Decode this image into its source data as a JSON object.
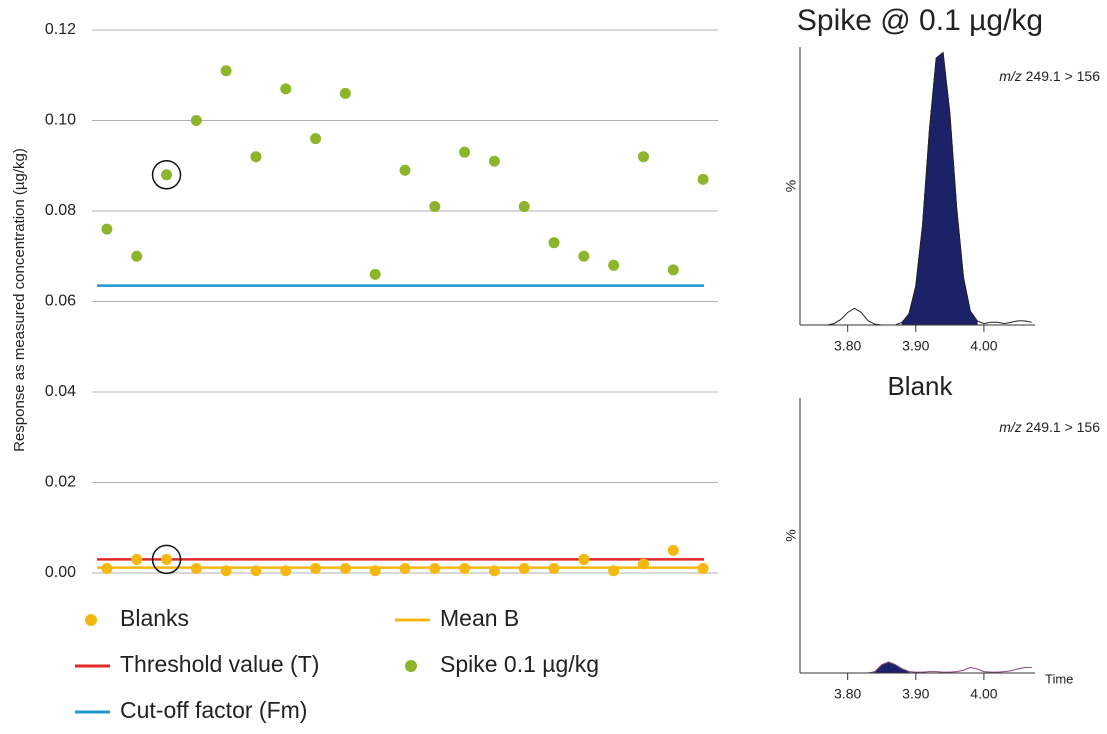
{
  "chart_data": [
    {
      "type": "scatter",
      "y_label": "Response as measured concentration (µg/kg)",
      "categories": [
        null,
        null,
        null,
        null,
        null,
        null,
        null,
        null,
        null,
        null,
        null,
        null,
        null,
        null,
        null,
        null,
        null,
        null,
        null,
        null,
        null
      ],
      "ylim": [
        0,
        0.12
      ],
      "yticks": [
        {
          "value": 0,
          "label": "0.00"
        },
        0.02,
        0.04,
        0.06,
        0.08,
        {
          "value": 0.1,
          "label": "0.10"
        },
        0.12
      ],
      "grid": true,
      "series": [
        {
          "name": "Blanks",
          "color": "#f5b810",
          "circled_index": 2,
          "values": [
            0.001,
            0.003,
            0.003,
            0.001,
            0.0005,
            0.0005,
            0.0005,
            0.001,
            0.001,
            0.0005,
            0.001,
            0.001,
            0.001,
            0.0005,
            0.001,
            0.001,
            0.003,
            0.0005,
            0.002,
            0.005,
            0.001
          ]
        },
        {
          "name": "Mean B",
          "color": "#f5b810",
          "value": 0.0012
        },
        {
          "name": "Threshold value (T)",
          "color": "#e02a2a",
          "value": 0.003
        },
        {
          "name": "Spike 0.1 µg/kg",
          "color": "#8db52c",
          "circled_index": 2,
          "values": [
            0.076,
            0.07,
            0.088,
            0.1,
            0.111,
            0.092,
            0.107,
            0.096,
            0.106,
            0.066,
            0.089,
            0.081,
            0.093,
            0.091,
            0.081,
            0.073,
            0.07,
            0.068,
            0.092,
            0.067,
            0.087
          ]
        },
        {
          "name": "Cut-off factor (Fm)",
          "color": "#1c9ad2",
          "value": 0.0635
        }
      ]
    },
    {
      "type": "line",
      "title": "Spike @ 0.1 µg/kg",
      "annotation": {
        "italic": "m/z",
        "text": "249.1 > 156"
      },
      "y_label": "%",
      "xlim": [
        3.73,
        4.075
      ],
      "ylim": [
        0,
        100
      ],
      "xticks": [
        {
          "value": 3.8,
          "label": "3.80"
        },
        {
          "value": 3.9,
          "label": "3.90"
        },
        {
          "value": 4.0,
          "label": "4.00"
        }
      ],
      "series": [
        {
          "color": "#1c2267",
          "fill": true,
          "x": [
            3.88,
            3.89,
            3.9,
            3.91,
            3.92,
            3.93,
            3.94,
            3.95,
            3.96,
            3.97,
            3.98,
            3.99
          ],
          "values": [
            1,
            4,
            14,
            36,
            70,
            96,
            98,
            76,
            42,
            17,
            5,
            1.5
          ]
        },
        {
          "color": "#222222",
          "x": [
            3.74,
            3.75,
            3.76,
            3.77,
            3.78,
            3.79,
            3.8,
            3.81,
            3.82,
            3.83,
            3.84,
            3.85,
            3.86,
            3.87,
            3.88,
            3.89,
            3.9,
            3.91,
            3.92,
            3.93,
            3.94,
            3.95,
            3.96,
            3.97,
            3.98,
            3.99,
            4.0,
            4.01,
            4.02,
            4.03,
            4.04,
            4.05,
            4.06,
            4.07
          ],
          "values": [
            0,
            0,
            0,
            0,
            0.5,
            2,
            4.5,
            6,
            4.5,
            1.5,
            0.3,
            0,
            0,
            0,
            1,
            4,
            14,
            36,
            70,
            96,
            98,
            76,
            42,
            17,
            5,
            1.5,
            0.5,
            1,
            1,
            0.5,
            1,
            1.5,
            1.5,
            1
          ]
        }
      ]
    },
    {
      "type": "line",
      "title": "Blank",
      "annotation": {
        "italic": "m/z",
        "text": "249.1 > 156"
      },
      "y_label": "%",
      "x_label": "Time",
      "xlim": [
        3.73,
        4.075
      ],
      "ylim": [
        0,
        100
      ],
      "xticks": [
        {
          "value": 3.8,
          "label": "3.80"
        },
        {
          "value": 3.9,
          "label": "3.90"
        },
        {
          "value": 4.0,
          "label": "4.00"
        }
      ],
      "series": [
        {
          "color": "#1c2267",
          "fill": true,
          "x": [
            3.84,
            3.85,
            3.86,
            3.87,
            3.88,
            3.89
          ],
          "values": [
            0.5,
            3,
            4,
            3,
            1.5,
            0.5
          ]
        },
        {
          "color": "#8a4a7a",
          "x": [
            3.74,
            3.75,
            3.76,
            3.77,
            3.78,
            3.79,
            3.8,
            3.81,
            3.82,
            3.83,
            3.84,
            3.85,
            3.86,
            3.87,
            3.88,
            3.89,
            3.9,
            3.91,
            3.92,
            3.93,
            3.94,
            3.95,
            3.96,
            3.97,
            3.98,
            3.99,
            4.0,
            4.01,
            4.02,
            4.03,
            4.04,
            4.05,
            4.06,
            4.07
          ],
          "values": [
            0,
            0,
            0,
            0,
            0,
            0,
            0,
            0,
            0,
            0,
            0.5,
            3,
            4,
            3,
            1.5,
            0.5,
            0.3,
            0.3,
            0.5,
            0.5,
            0.3,
            0.3,
            0.5,
            1,
            2,
            1.5,
            0.5,
            0.3,
            0.3,
            0.5,
            0.8,
            1.5,
            2,
            2
          ]
        }
      ]
    }
  ]
}
